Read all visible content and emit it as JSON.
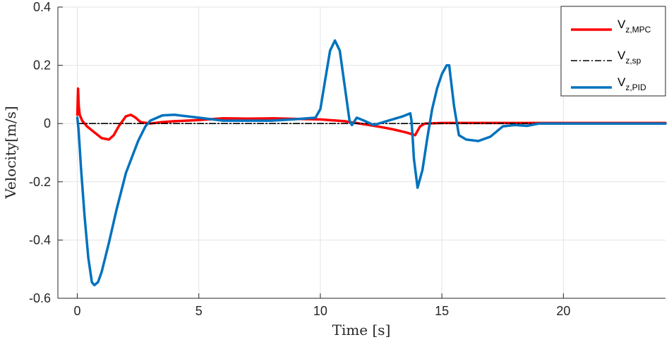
{
  "chart_data": {
    "type": "line",
    "xlabel": "Time [s]",
    "ylabel": "Velocity[m/s]",
    "xlim": [
      -0.8,
      24.2
    ],
    "ylim": [
      -0.6,
      0.4
    ],
    "xticks": [
      0,
      5,
      10,
      15,
      20
    ],
    "xtick_labels": [
      "0",
      "5",
      "10",
      "15",
      "20"
    ],
    "yticks": [
      -0.6,
      -0.4,
      -0.2,
      0,
      0.2,
      0.4
    ],
    "ytick_labels": [
      "-0.6",
      "-0.4",
      "-0.2",
      "0",
      "0.2",
      "0.4"
    ],
    "grid": true,
    "legend_position": "top-right",
    "series": [
      {
        "key": "mpc",
        "name_main": "V",
        "name_sub": "z,MPC",
        "color": "#ff0000",
        "style": "solid",
        "x": [
          0,
          0.03,
          0.06,
          0.1,
          0.2,
          0.4,
          0.7,
          1.0,
          1.3,
          1.5,
          1.7,
          2.0,
          2.2,
          2.4,
          2.6,
          3.0,
          3.5,
          4.0,
          5.0,
          6.0,
          7.0,
          8.0,
          9.0,
          10.0,
          11.0,
          12.0,
          12.5,
          13.0,
          13.5,
          13.9,
          14.1,
          14.3,
          15.0,
          16.0,
          17.0,
          20.0,
          24.2
        ],
        "y": [
          0.03,
          0.12,
          0.06,
          0.03,
          0.01,
          -0.01,
          -0.03,
          -0.05,
          -0.055,
          -0.04,
          -0.01,
          0.025,
          0.03,
          0.02,
          0.005,
          0.0,
          0.005,
          0.008,
          0.012,
          0.018,
          0.017,
          0.018,
          0.016,
          0.014,
          0.008,
          -0.005,
          -0.012,
          -0.02,
          -0.03,
          -0.04,
          -0.01,
          0.0,
          0.002,
          0.002,
          0.002,
          0.002,
          0.002
        ]
      },
      {
        "key": "sp",
        "name_main": "V",
        "name_sub": "z,sp",
        "color": "#000000",
        "style": "dashdot",
        "x": [
          0,
          24.2
        ],
        "y": [
          0,
          0
        ]
      },
      {
        "key": "pid",
        "name_main": "V",
        "name_sub": "z,PID",
        "color": "#0072bd",
        "style": "solid",
        "x": [
          0,
          0.05,
          0.15,
          0.3,
          0.45,
          0.6,
          0.7,
          0.85,
          1.0,
          1.3,
          1.6,
          2.0,
          2.5,
          2.8,
          3.0,
          3.5,
          4.0,
          5.0,
          6.0,
          7.0,
          8.0,
          9.0,
          9.8,
          10.0,
          10.2,
          10.4,
          10.6,
          10.8,
          11.0,
          11.2,
          11.3,
          11.5,
          11.8,
          12.2,
          12.8,
          13.4,
          13.7,
          13.75,
          13.8,
          13.85,
          14.0,
          14.2,
          14.4,
          14.6,
          14.8,
          15.0,
          15.2,
          15.3,
          15.5,
          15.7,
          16.0,
          16.5,
          17.0,
          17.5,
          18.0,
          18.5,
          19.0,
          20.0,
          24.2
        ],
        "y": [
          0.02,
          -0.02,
          -0.15,
          -0.32,
          -0.46,
          -0.545,
          -0.555,
          -0.545,
          -0.51,
          -0.41,
          -0.3,
          -0.17,
          -0.06,
          -0.01,
          0.01,
          0.028,
          0.03,
          0.02,
          0.01,
          0.01,
          0.01,
          0.015,
          0.02,
          0.05,
          0.15,
          0.25,
          0.285,
          0.25,
          0.13,
          0.01,
          -0.005,
          0.02,
          0.01,
          -0.005,
          0.01,
          0.025,
          0.035,
          0.01,
          -0.05,
          -0.12,
          -0.22,
          -0.16,
          -0.05,
          0.05,
          0.12,
          0.17,
          0.2,
          0.2,
          0.06,
          -0.04,
          -0.055,
          -0.06,
          -0.045,
          -0.01,
          -0.005,
          -0.008,
          0.0,
          0.0,
          0.0
        ]
      }
    ]
  }
}
